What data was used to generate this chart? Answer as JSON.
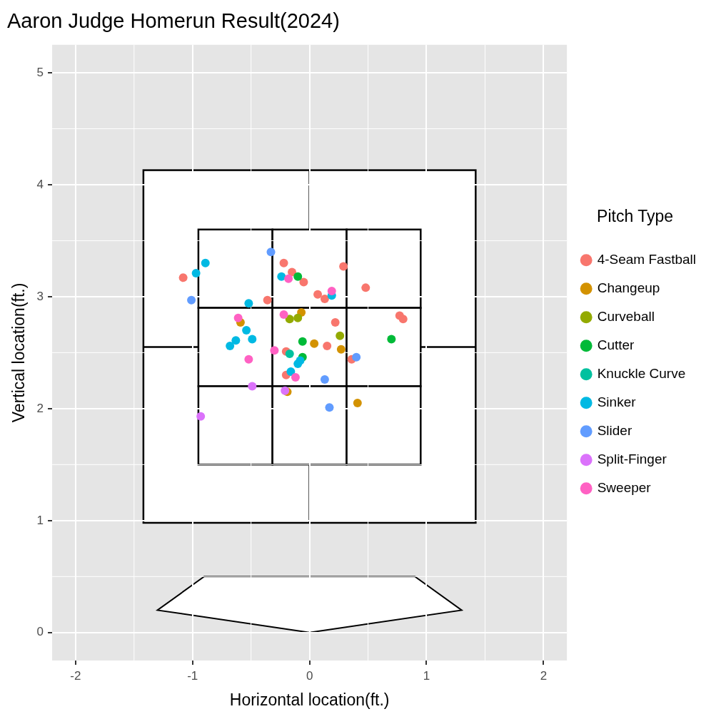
{
  "chart_data": {
    "type": "scatter",
    "title": "Aaron Judge Homerun Result(2024)",
    "xlabel": "Horizontal location(ft.)",
    "ylabel": "Vertical location(ft.)",
    "legend_title": "Pitch Type",
    "xlim": [
      -2.2,
      2.2
    ],
    "ylim": [
      -0.25,
      5.25
    ],
    "xticks": [
      -2,
      -1,
      0,
      1,
      2
    ],
    "yticks": [
      0,
      1,
      2,
      3,
      4,
      5
    ],
    "grid": true,
    "legend": "right",
    "marker": "circle",
    "series": [
      {
        "name": "4-Seam Fastball",
        "color": "#f8766d",
        "x": [
          -1.08,
          -0.22,
          -0.15,
          -0.05,
          -0.36,
          0.07,
          0.13,
          0.29,
          0.48,
          0.22,
          0.77,
          0.8,
          0.15,
          0.36,
          -0.2,
          -0.2
        ],
        "values": [
          3.17,
          3.3,
          3.22,
          3.13,
          2.97,
          3.02,
          2.98,
          3.27,
          3.08,
          2.77,
          2.83,
          2.8,
          2.56,
          2.44,
          2.51,
          2.3
        ]
      },
      {
        "name": "Changeup",
        "color": "#d39200",
        "x": [
          -0.59,
          -0.07,
          0.04,
          0.27,
          0.41,
          -0.19
        ],
        "values": [
          2.77,
          2.86,
          2.58,
          2.53,
          2.05,
          2.15
        ]
      },
      {
        "name": "Curveball",
        "color": "#93aa00",
        "x": [
          -0.17,
          -0.1,
          0.26
        ],
        "values": [
          2.8,
          2.81,
          2.65
        ]
      },
      {
        "name": "Cutter",
        "color": "#00ba38",
        "x": [
          -0.1,
          -0.06,
          -0.06,
          0.7
        ],
        "values": [
          3.18,
          2.6,
          2.46,
          2.62
        ]
      },
      {
        "name": "Knuckle Curve",
        "color": "#00c19f",
        "x": [
          -0.17
        ],
        "values": [
          2.49
        ]
      },
      {
        "name": "Sinker",
        "color": "#00b9e3",
        "x": [
          -0.97,
          -0.89,
          -0.24,
          -0.52,
          0.19,
          -0.54,
          -0.63,
          -0.68,
          -0.49,
          -0.1,
          -0.08,
          -0.16
        ],
        "values": [
          3.21,
          3.3,
          3.18,
          2.94,
          3.01,
          2.7,
          2.61,
          2.56,
          2.62,
          2.4,
          2.43,
          2.33
        ]
      },
      {
        "name": "Slider",
        "color": "#619cff",
        "x": [
          -0.33,
          -1.01,
          0.4,
          0.13,
          0.17
        ],
        "values": [
          3.4,
          2.97,
          2.46,
          2.26,
          2.01
        ]
      },
      {
        "name": "Split-Finger",
        "color": "#db72fb",
        "x": [
          -0.49,
          -0.21,
          -0.93
        ],
        "values": [
          2.2,
          2.16,
          1.93
        ]
      },
      {
        "name": "Sweeper",
        "color": "#ff61c3",
        "x": [
          -0.61,
          -0.18,
          0.19,
          -0.22,
          -0.3,
          -0.52,
          -0.12
        ],
        "values": [
          2.81,
          3.16,
          3.05,
          2.84,
          2.52,
          2.44,
          2.28
        ]
      }
    ]
  }
}
